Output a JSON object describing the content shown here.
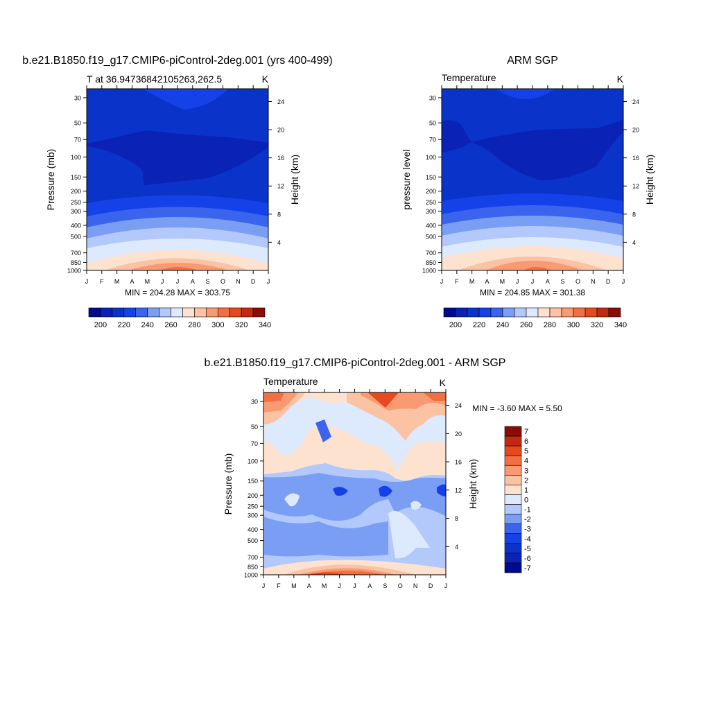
{
  "theme": {
    "temp_colors": [
      "#000a8f",
      "#0a22b5",
      "#0a33c9",
      "#1542e8",
      "#3a64ee",
      "#7b9ef5",
      "#b3c8fb",
      "#dde9fd",
      "#fde2d0",
      "#fbc2a4",
      "#f99a72",
      "#f26f43",
      "#e8481d",
      "#c12a10",
      "#8c0b05"
    ],
    "diff_colors": [
      "#000a8f",
      "#0a22b5",
      "#0a33c9",
      "#1542e8",
      "#3a64ee",
      "#7b9ef5",
      "#b3c8fb",
      "#dde9fd",
      "#fde2d0",
      "#fbc2a4",
      "#f99a72",
      "#f26f43",
      "#e8481d",
      "#c12a10",
      "#8c0b05"
    ]
  },
  "panels": {
    "model": {
      "title": "b.e21.B1850.f19_g17.CMIP6-piControl-2deg.001 (yrs 400-499)",
      "left_label": "T at 36.94736842105263,262.5",
      "right_label": "K",
      "ylabel": "Pressure (mb)",
      "y2label": "Height (km)",
      "stats": "MIN = 204.28 MAX = 303.75"
    },
    "obs": {
      "title": "ARM SGP",
      "left_label": "Temperature",
      "right_label": "K",
      "ylabel": "pressure level",
      "y2label": "Height (km)",
      "stats": "MIN = 204.85 MAX = 301.38"
    },
    "diff": {
      "title": "b.e21.B1850.f19_g17.CMIP6-piControl-2deg.001 - ARM SGP",
      "left_label": "Temperature",
      "right_label": "K",
      "ylabel": "Pressure (mb)",
      "y2label": "Height (km)",
      "stats": "MIN =  -3.60 MAX =   5.50"
    }
  },
  "chart_data": [
    {
      "type": "heatmap",
      "name": "model",
      "x": [
        "J",
        "F",
        "M",
        "A",
        "M",
        "J",
        "J",
        "A",
        "S",
        "O",
        "N",
        "D",
        "J"
      ],
      "pressure_ticks": [
        30,
        50,
        70,
        100,
        150,
        200,
        250,
        300,
        400,
        500,
        700,
        850,
        1000
      ],
      "height_ticks_km": [
        4,
        8,
        12,
        16,
        20,
        24
      ],
      "ylim_mb": [
        25,
        1000
      ],
      "units": "K",
      "min": 204.28,
      "max": 303.75,
      "levels": [
        200,
        210,
        220,
        230,
        240,
        250,
        260,
        270,
        280,
        290,
        300,
        310,
        320,
        330,
        340
      ]
    },
    {
      "type": "heatmap",
      "name": "obs",
      "x": [
        "J",
        "F",
        "M",
        "A",
        "M",
        "J",
        "J",
        "A",
        "S",
        "O",
        "N",
        "D",
        "J"
      ],
      "pressure_ticks": [
        30,
        50,
        70,
        100,
        150,
        200,
        250,
        300,
        400,
        500,
        700,
        850,
        1000
      ],
      "height_ticks_km": [
        4,
        8,
        12,
        16,
        20,
        24
      ],
      "ylim_mb": [
        25,
        1000
      ],
      "units": "K",
      "min": 204.85,
      "max": 301.38,
      "levels": [
        200,
        210,
        220,
        230,
        240,
        250,
        260,
        270,
        280,
        290,
        300,
        310,
        320,
        330,
        340
      ]
    },
    {
      "type": "heatmap",
      "name": "diff",
      "x": [
        "J",
        "F",
        "M",
        "A",
        "M",
        "J",
        "J",
        "A",
        "S",
        "O",
        "N",
        "D",
        "J"
      ],
      "pressure_ticks": [
        30,
        50,
        70,
        100,
        150,
        200,
        250,
        300,
        400,
        500,
        700,
        850,
        1000
      ],
      "height_ticks_km": [
        4,
        8,
        12,
        16,
        20,
        24
      ],
      "ylim_mb": [
        25,
        1000
      ],
      "units": "K",
      "min": -3.6,
      "max": 5.5,
      "levels": [
        -7,
        -6,
        -5,
        -4,
        -3,
        -2,
        -1,
        0,
        1,
        2,
        3,
        4,
        5,
        6,
        7
      ]
    }
  ],
  "colorbars": {
    "temp_labels": [
      "200",
      "220",
      "240",
      "260",
      "280",
      "300",
      "320",
      "340"
    ],
    "diff_labels": [
      "7",
      "6",
      "5",
      "4",
      "3",
      "2",
      "1",
      "0",
      "-1",
      "-2",
      "-3",
      "-4",
      "-5",
      "-6",
      "-7"
    ]
  }
}
